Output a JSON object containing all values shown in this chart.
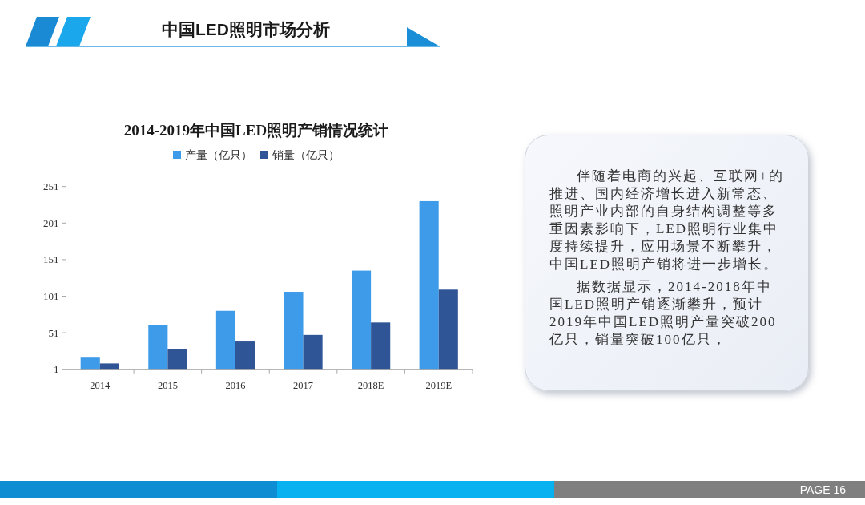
{
  "chart_data": [
    {
      "type": "other",
      "title": "中国LED照明市场分析",
      "annotations": [
        "PAGE 16"
      ]
    },
    {
      "type": "bar",
      "title": "2014-2019年中国LED照明产销情况统计",
      "categories": [
        "2014",
        "2015",
        "2016",
        "2017",
        "2018E",
        "2019E"
      ],
      "series": [
        {
          "name": "产量（亿只）",
          "color": "#3d9be9",
          "values": [
            18,
            61,
            81,
            107,
            136,
            231
          ]
        },
        {
          "name": "销量（亿只）",
          "color": "#2f5597",
          "values": [
            9,
            29,
            39,
            48,
            65,
            110
          ]
        }
      ],
      "ylim": [
        1,
        251
      ],
      "yticks": [
        1,
        51,
        101,
        151,
        201,
        251
      ],
      "legend": "top"
    },
    {
      "type": "other",
      "annotations": [
        "伴随着电商的兴起、互联网+的推进、国内经济增长进入新常态、照明产业内部的自身结构调整等多重因素影响下，LED照明行业集中度持续提升，应用场景不断攀升，中国LED照明产销将进一步增长。",
        "据数据显示，2014-2018年中国LED照明产销逐渐攀升，预计2019年中国LED照明产量突破200亿只，销量突破100亿只，"
      ]
    }
  ]
}
